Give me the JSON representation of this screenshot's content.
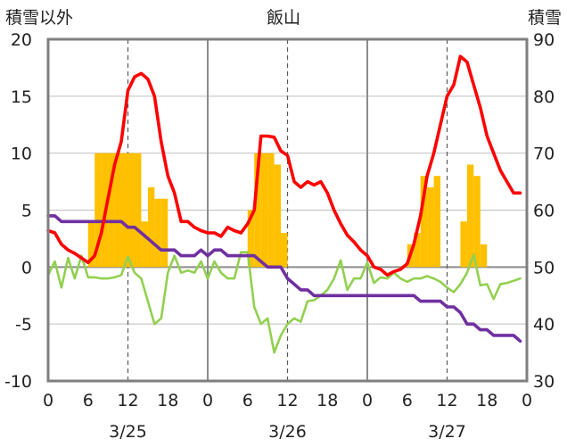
{
  "chart_data": {
    "type": "line",
    "title": "飯山",
    "left_axis": {
      "label": "積雪以外",
      "range": [
        -10,
        20
      ],
      "ticks": [
        "20",
        "15",
        "10",
        "5",
        "0",
        "-5",
        "-10"
      ]
    },
    "right_axis": {
      "label": "積雪",
      "range": [
        30,
        90
      ],
      "ticks": [
        "90",
        "80",
        "70",
        "60",
        "50",
        "40",
        "30"
      ]
    },
    "x_axis": {
      "hours_range": [
        0,
        72
      ],
      "tick_labels": [
        "0",
        "6",
        "12",
        "18",
        "0",
        "6",
        "12",
        "18",
        "0",
        "6",
        "12",
        "18",
        "0"
      ],
      "date_labels": [
        "3/25",
        "3/26",
        "3/27"
      ]
    },
    "grid": true,
    "series": [
      {
        "kind": "bar",
        "color": "#FFC000",
        "axis": "left",
        "values": [
          [
            7,
            4
          ],
          [
            8,
            10
          ],
          [
            9,
            10
          ],
          [
            10,
            10
          ],
          [
            11,
            10
          ],
          [
            12,
            10
          ],
          [
            13,
            10
          ],
          [
            14,
            10
          ],
          [
            15,
            4
          ],
          [
            16,
            7
          ],
          [
            17,
            6
          ],
          [
            18,
            6
          ],
          [
            31,
            5
          ],
          [
            32,
            10
          ],
          [
            33,
            10
          ],
          [
            34,
            10
          ],
          [
            35,
            9
          ],
          [
            36,
            3
          ],
          [
            55,
            2
          ],
          [
            56,
            3
          ],
          [
            57,
            8
          ],
          [
            58,
            7
          ],
          [
            59,
            8
          ],
          [
            63,
            4
          ],
          [
            64,
            9
          ],
          [
            65,
            8
          ],
          [
            66,
            2
          ]
        ]
      },
      {
        "kind": "line",
        "color": "#FF0000",
        "axis": "left",
        "values": [
          [
            0,
            3.2
          ],
          [
            1,
            3
          ],
          [
            2,
            2
          ],
          [
            3,
            1.5
          ],
          [
            4,
            1.2
          ],
          [
            5,
            0.8
          ],
          [
            6,
            0.4
          ],
          [
            7,
            1
          ],
          [
            8,
            3
          ],
          [
            9,
            6
          ],
          [
            10,
            9
          ],
          [
            11,
            11
          ],
          [
            12,
            15.5
          ],
          [
            13,
            16.7
          ],
          [
            14,
            17
          ],
          [
            15,
            16.5
          ],
          [
            16,
            15
          ],
          [
            17,
            11
          ],
          [
            18,
            8
          ],
          [
            19,
            6.5
          ],
          [
            20,
            4
          ],
          [
            21,
            4
          ],
          [
            22,
            3.5
          ],
          [
            23,
            3.2
          ],
          [
            24,
            3
          ],
          [
            25,
            3
          ],
          [
            26,
            2.7
          ],
          [
            27,
            3.5
          ],
          [
            28,
            3.2
          ],
          [
            29,
            3
          ],
          [
            30,
            3.8
          ],
          [
            31,
            5
          ],
          [
            32,
            11.5
          ],
          [
            33,
            11.5
          ],
          [
            34,
            11.4
          ],
          [
            35,
            10.2
          ],
          [
            36,
            9.8
          ],
          [
            37,
            7.5
          ],
          [
            38,
            7
          ],
          [
            39,
            7.5
          ],
          [
            40,
            7.2
          ],
          [
            41,
            7.5
          ],
          [
            42,
            6.5
          ],
          [
            43,
            5
          ],
          [
            44,
            3.8
          ],
          [
            45,
            2.8
          ],
          [
            46,
            2.2
          ],
          [
            47,
            1.5
          ],
          [
            48,
            1
          ],
          [
            49,
            0
          ],
          [
            50,
            -0.2
          ],
          [
            51,
            -0.7
          ],
          [
            52,
            -0.4
          ],
          [
            53,
            -0.2
          ],
          [
            54,
            0.3
          ],
          [
            55,
            2
          ],
          [
            56,
            4.5
          ],
          [
            57,
            8
          ],
          [
            58,
            10
          ],
          [
            59,
            12.5
          ],
          [
            60,
            15
          ],
          [
            61,
            16
          ],
          [
            62,
            18.5
          ],
          [
            63,
            18
          ],
          [
            64,
            16
          ],
          [
            65,
            14
          ],
          [
            66,
            11.5
          ],
          [
            67,
            10
          ],
          [
            68,
            8.5
          ],
          [
            69,
            7.5
          ],
          [
            70,
            6.5
          ],
          [
            71,
            6.5
          ]
        ]
      },
      {
        "kind": "line",
        "color": "#92D050",
        "axis": "left",
        "values": [
          [
            0,
            -0.7
          ],
          [
            1,
            0.5
          ],
          [
            2,
            -1.8
          ],
          [
            3,
            0.8
          ],
          [
            4,
            -1
          ],
          [
            5,
            1
          ],
          [
            6,
            -0.9
          ],
          [
            7,
            -0.9
          ],
          [
            8,
            -1
          ],
          [
            9,
            -1
          ],
          [
            10,
            -0.9
          ],
          [
            11,
            -0.7
          ],
          [
            12,
            0.9
          ],
          [
            13,
            -0.5
          ],
          [
            14,
            -1
          ],
          [
            15,
            -3
          ],
          [
            16,
            -5
          ],
          [
            17,
            -4.5
          ],
          [
            18,
            -0.5
          ],
          [
            19,
            1
          ],
          [
            20,
            -0.5
          ],
          [
            21,
            -0.3
          ],
          [
            22,
            -0.5
          ],
          [
            23,
            0.5
          ],
          [
            24,
            -1
          ],
          [
            25,
            0.5
          ],
          [
            26,
            -0.5
          ],
          [
            27,
            -1
          ],
          [
            28,
            -1
          ],
          [
            29,
            1.3
          ],
          [
            30,
            1.3
          ],
          [
            31,
            -3.5
          ],
          [
            32,
            -5
          ],
          [
            33,
            -4.5
          ],
          [
            34,
            -7.5
          ],
          [
            35,
            -6
          ],
          [
            36,
            -5
          ],
          [
            37,
            -4.5
          ],
          [
            38,
            -4.8
          ],
          [
            39,
            -3
          ],
          [
            40,
            -2.9
          ],
          [
            41,
            -2.5
          ],
          [
            42,
            -2
          ],
          [
            43,
            -1
          ],
          [
            44,
            0.6
          ],
          [
            45,
            -2
          ],
          [
            46,
            -1
          ],
          [
            47,
            -1
          ],
          [
            48,
            0.4
          ],
          [
            49,
            -1.4
          ],
          [
            50,
            -0.9
          ],
          [
            51,
            -1
          ],
          [
            52,
            -0.5
          ],
          [
            53,
            -1
          ],
          [
            54,
            -1.3
          ],
          [
            55,
            -1
          ],
          [
            56,
            -1
          ],
          [
            57,
            -0.8
          ],
          [
            58,
            -1
          ],
          [
            59,
            -1.3
          ],
          [
            60,
            -1.8
          ],
          [
            61,
            -2.2
          ],
          [
            62,
            -1.5
          ],
          [
            63,
            -0.5
          ],
          [
            64,
            1.1
          ],
          [
            65,
            -1.6
          ],
          [
            66,
            -1.5
          ],
          [
            67,
            -2.8
          ],
          [
            68,
            -1.5
          ],
          [
            69,
            -1.4
          ],
          [
            70,
            -1.2
          ],
          [
            71,
            -1
          ]
        ]
      },
      {
        "kind": "line",
        "color": "#7030A0",
        "axis": "right",
        "values": [
          [
            0,
            59
          ],
          [
            1,
            59
          ],
          [
            2,
            58
          ],
          [
            3,
            58
          ],
          [
            4,
            58
          ],
          [
            5,
            58
          ],
          [
            6,
            58
          ],
          [
            7,
            58
          ],
          [
            8,
            58
          ],
          [
            9,
            58
          ],
          [
            10,
            58
          ],
          [
            11,
            58
          ],
          [
            12,
            57
          ],
          [
            13,
            57
          ],
          [
            14,
            56
          ],
          [
            15,
            55
          ],
          [
            16,
            54
          ],
          [
            17,
            53
          ],
          [
            18,
            53
          ],
          [
            19,
            53
          ],
          [
            20,
            52
          ],
          [
            21,
            52
          ],
          [
            22,
            52
          ],
          [
            23,
            53
          ],
          [
            24,
            52
          ],
          [
            25,
            53
          ],
          [
            26,
            53
          ],
          [
            27,
            52
          ],
          [
            28,
            52
          ],
          [
            29,
            52
          ],
          [
            30,
            52
          ],
          [
            31,
            52
          ],
          [
            32,
            51
          ],
          [
            33,
            50
          ],
          [
            34,
            50
          ],
          [
            35,
            50
          ],
          [
            36,
            48
          ],
          [
            37,
            47
          ],
          [
            38,
            46
          ],
          [
            39,
            46
          ],
          [
            40,
            45
          ],
          [
            41,
            45
          ],
          [
            42,
            45
          ],
          [
            43,
            45
          ],
          [
            44,
            45
          ],
          [
            45,
            45
          ],
          [
            46,
            45
          ],
          [
            47,
            45
          ],
          [
            48,
            45
          ],
          [
            49,
            45
          ],
          [
            50,
            45
          ],
          [
            51,
            45
          ],
          [
            52,
            45
          ],
          [
            53,
            45
          ],
          [
            54,
            45
          ],
          [
            55,
            45
          ],
          [
            56,
            44
          ],
          [
            57,
            44
          ],
          [
            58,
            44
          ],
          [
            59,
            44
          ],
          [
            60,
            43
          ],
          [
            61,
            43
          ],
          [
            62,
            42
          ],
          [
            63,
            40
          ],
          [
            64,
            40
          ],
          [
            65,
            39
          ],
          [
            66,
            39
          ],
          [
            67,
            38
          ],
          [
            68,
            38
          ],
          [
            69,
            38
          ],
          [
            70,
            38
          ],
          [
            71,
            37
          ]
        ]
      }
    ]
  }
}
